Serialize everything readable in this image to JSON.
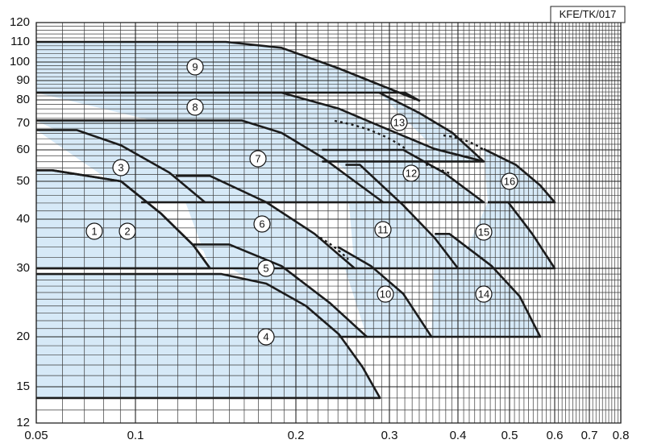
{
  "chart_data": {
    "type": "region",
    "code": "KFE/TK/017",
    "xlim": [
      0.05,
      0.8
    ],
    "ylim": [
      12,
      120
    ],
    "log_x": true,
    "log_y": true,
    "grid": true,
    "color": "#d6e9f7",
    "xticks": [
      0.05,
      0.1,
      0.2,
      0.3,
      0.4,
      0.5,
      0.6,
      0.7,
      0.8
    ],
    "yticks": [
      12,
      15,
      20,
      30,
      40,
      50,
      60,
      70,
      80,
      90,
      100,
      110,
      120
    ],
    "x_minor_ticks": [
      0.06,
      0.07,
      0.08,
      0.09,
      0.11,
      0.12,
      0.13,
      0.14,
      0.15,
      0.16,
      0.17,
      0.18,
      0.19,
      0.21,
      0.22,
      0.23,
      0.24,
      0.25,
      0.26,
      0.27,
      0.28,
      0.29,
      0.31,
      0.32,
      0.33,
      0.34,
      0.35,
      0.36,
      0.37,
      0.38,
      0.39,
      0.41,
      0.42,
      0.43,
      0.44,
      0.45,
      0.46,
      0.47,
      0.48,
      0.49,
      0.51,
      0.52,
      0.53,
      0.54,
      0.55,
      0.56,
      0.57,
      0.58,
      0.59,
      0.61,
      0.62,
      0.63,
      0.64,
      0.65,
      0.66,
      0.67,
      0.68,
      0.69,
      0.71,
      0.72,
      0.73,
      0.74,
      0.75,
      0.76,
      0.77,
      0.78,
      0.79
    ],
    "y_minor_ticks": [
      13,
      14,
      16,
      17,
      18,
      19,
      21,
      22,
      23,
      24,
      25,
      26,
      27,
      28,
      29,
      32,
      34,
      36,
      38,
      42,
      44,
      46,
      48,
      52,
      54,
      56,
      58,
      62,
      64,
      66,
      68,
      72,
      74,
      76,
      78,
      82,
      84,
      86,
      88,
      92,
      94,
      96,
      98,
      102,
      104,
      106,
      108,
      112,
      114,
      116,
      118
    ],
    "regions": [
      {
        "label": "9",
        "points": [
          [
            0.05,
            110
          ],
          [
            0.1477,
            110
          ],
          [
            0.188,
            107
          ],
          [
            0.241,
            96.4
          ],
          [
            0.287,
            87.8
          ],
          [
            0.34,
            79.7
          ],
          [
            0.32,
            83.6
          ],
          [
            0.05,
            83.6
          ]
        ]
      },
      {
        "label": "8",
        "points": [
          [
            0.05,
            83.6
          ],
          [
            0.188,
            83.6
          ],
          [
            0.241,
            76.1
          ],
          [
            0.297,
            67.7
          ],
          [
            0.363,
            60.3
          ],
          [
            0.447,
            56.1
          ],
          [
            0.224,
            56.1
          ]
        ]
      },
      {
        "label": "13",
        "points": [
          [
            0.287,
            83.6
          ],
          [
            0.34,
            74.3
          ],
          [
            0.391,
            66.2
          ],
          [
            0.447,
            56.1
          ],
          [
            0.363,
            60.3
          ]
        ]
      },
      {
        "label": "7",
        "points": [
          [
            0.05,
            71.1
          ],
          [
            0.1585,
            71.1
          ],
          [
            0.188,
            66.2
          ],
          [
            0.224,
            57.5
          ],
          [
            0.258,
            50
          ],
          [
            0.292,
            44.2
          ],
          [
            0.135,
            44.2
          ]
        ]
      },
      {
        "label": "12",
        "points": [
          [
            0.224,
            60
          ],
          [
            0.318,
            60
          ],
          [
            0.377,
            52.6
          ],
          [
            0.447,
            44.2
          ],
          [
            0.292,
            44.2
          ]
        ]
      },
      {
        "label": "16",
        "points": [
          [
            0.447,
            60.3
          ],
          [
            0.513,
            55
          ],
          [
            0.566,
            48.8
          ],
          [
            0.6,
            44.2
          ],
          [
            0.455,
            44.2
          ]
        ]
      },
      {
        "label": "3",
        "points": [
          [
            0.05,
            67.3
          ],
          [
            0.0663,
            67.3
          ],
          [
            0.0904,
            61.6
          ],
          [
            0.1158,
            52.6
          ],
          [
            0.135,
            44.2
          ],
          [
            0.1025,
            44.2
          ]
        ]
      },
      {
        "label": "6",
        "points": [
          [
            0.119,
            51.6
          ],
          [
            0.138,
            51.6
          ],
          [
            0.176,
            44.2
          ],
          [
            0.217,
            36.7
          ],
          [
            0.258,
            30
          ],
          [
            0.138,
            30
          ]
        ]
      },
      {
        "label": "11",
        "points": [
          [
            0.248,
            55
          ],
          [
            0.264,
            55
          ],
          [
            0.318,
            43.4
          ],
          [
            0.363,
            35.8
          ],
          [
            0.4,
            30
          ],
          [
            0.258,
            30
          ]
        ]
      },
      {
        "label": "15",
        "points": [
          [
            0.455,
            44.2
          ],
          [
            0.497,
            44.2
          ],
          [
            0.548,
            36.7
          ],
          [
            0.6,
            30
          ],
          [
            0.4,
            30
          ]
        ]
      },
      {
        "label": "1",
        "points": [
          [
            0.05,
            53.3
          ],
          [
            0.0559,
            53.3
          ],
          [
            0.0904,
            50
          ],
          [
            0.1118,
            41.3
          ],
          [
            0.1285,
            34.3
          ],
          [
            0.138,
            30
          ],
          [
            0.05,
            30
          ]
        ]
      },
      {
        "label": "2",
        "points": [
          [
            0.05,
            53.3
          ],
          [
            0.0559,
            53.3
          ],
          [
            0.0904,
            50
          ],
          [
            0.1118,
            41.3
          ],
          [
            0.1285,
            34.3
          ],
          [
            0.138,
            30
          ],
          [
            0.05,
            30
          ]
        ]
      },
      {
        "label": "5",
        "points": [
          [
            0.1285,
            34.5
          ],
          [
            0.15,
            34.5
          ],
          [
            0.188,
            30.4
          ],
          [
            0.232,
            24.4
          ],
          [
            0.272,
            20
          ],
          [
            0.241,
            20
          ]
        ]
      },
      {
        "label": "10",
        "points": [
          [
            0.24,
            34
          ],
          [
            0.277,
            30.4
          ],
          [
            0.318,
            25.8
          ],
          [
            0.358,
            20
          ],
          [
            0.272,
            20
          ]
        ]
      },
      {
        "label": "14",
        "points": [
          [
            0.363,
            36.7
          ],
          [
            0.386,
            36.7
          ],
          [
            0.463,
            30.4
          ],
          [
            0.521,
            25.4
          ],
          [
            0.566,
            20
          ],
          [
            0.358,
            20
          ]
        ]
      },
      {
        "label": "4",
        "points": [
          [
            0.05,
            29
          ],
          [
            0.145,
            29
          ],
          [
            0.176,
            27.4
          ],
          [
            0.209,
            24
          ],
          [
            0.241,
            20.3
          ],
          [
            0.267,
            16.8
          ],
          [
            0.288,
            14
          ],
          [
            0.05,
            14
          ]
        ]
      }
    ]
  }
}
